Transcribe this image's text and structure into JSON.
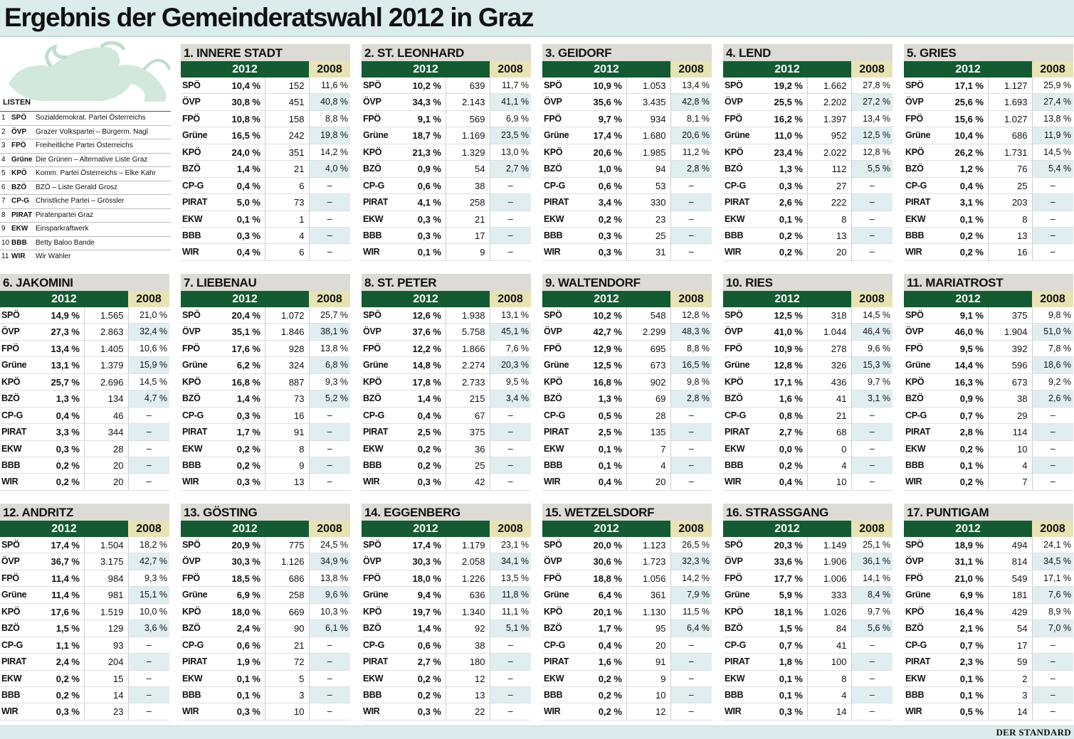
{
  "header": {
    "title": "Ergebnis der Gemeinderatswahl 2012 in Graz"
  },
  "footer": {
    "brand": "DER STANDARD"
  },
  "legend": {
    "heading": "LISTEN",
    "items": [
      {
        "num": "1",
        "abbr": "SPÖ",
        "name": "Sozialdemokrat. Partei Österreichs"
      },
      {
        "num": "2",
        "abbr": "ÖVP",
        "name": "Grazer Volkspartei – Bürgerm. Nagl"
      },
      {
        "num": "3",
        "abbr": "FPÖ",
        "name": "Freiheitliche Partei Österreichs"
      },
      {
        "num": "4",
        "abbr": "Grüne",
        "name": "Die Grünen – Alternative Liste Graz"
      },
      {
        "num": "5",
        "abbr": "KPÖ",
        "name": "Komm. Partei Österreichs – Elke Kahr"
      },
      {
        "num": "6",
        "abbr": "BZÖ",
        "name": "BZÖ – Liste Gerald Grosz"
      },
      {
        "num": "7",
        "abbr": "CP-G",
        "name": "Christliche Partei – Grössler"
      },
      {
        "num": "8",
        "abbr": "PIRAT",
        "name": "Piratenpartei Graz"
      },
      {
        "num": "9",
        "abbr": "EKW",
        "name": "Einsparkraftwerk"
      },
      {
        "num": "10",
        "abbr": "BBB",
        "name": "Betty Baloo Bande"
      },
      {
        "num": "11",
        "abbr": "WIR",
        "name": "Wir Wähler"
      }
    ]
  },
  "labels": {
    "year_current": "2012",
    "year_previous": "2008"
  },
  "parties": [
    "SPÖ",
    "ÖVP",
    "FPÖ",
    "Grüne",
    "KPÖ",
    "BZÖ",
    "CP-G",
    "PIRAT",
    "EKW",
    "BBB",
    "WIR"
  ],
  "districts": [
    {
      "name": "1. INNERE STADT",
      "rows": [
        [
          "10,4 %",
          "152",
          "11,6 %"
        ],
        [
          "30,8 %",
          "451",
          "40,8 %"
        ],
        [
          "10,8 %",
          "158",
          "8,8 %"
        ],
        [
          "16,5 %",
          "242",
          "19,8 %"
        ],
        [
          "24,0 %",
          "351",
          "14,2 %"
        ],
        [
          "1,4 %",
          "21",
          "4,0 %"
        ],
        [
          "0,4 %",
          "6",
          "–"
        ],
        [
          "5,0 %",
          "73",
          "–"
        ],
        [
          "0,1 %",
          "1",
          "–"
        ],
        [
          "0,3 %",
          "4",
          "–"
        ],
        [
          "0,4 %",
          "6",
          "–"
        ]
      ]
    },
    {
      "name": "2. ST. LEONHARD",
      "rows": [
        [
          "10,2 %",
          "639",
          "11,7 %"
        ],
        [
          "34,3 %",
          "2.143",
          "41,1 %"
        ],
        [
          "9,1 %",
          "569",
          "6,9 %"
        ],
        [
          "18,7 %",
          "1.169",
          "23,5 %"
        ],
        [
          "21,3 %",
          "1.329",
          "13,0 %"
        ],
        [
          "0,9 %",
          "54",
          "2,7 %"
        ],
        [
          "0,6 %",
          "38",
          "–"
        ],
        [
          "4,1 %",
          "258",
          "–"
        ],
        [
          "0,3 %",
          "21",
          "–"
        ],
        [
          "0,3 %",
          "17",
          "–"
        ],
        [
          "0,1 %",
          "9",
          "–"
        ]
      ]
    },
    {
      "name": "3. GEIDORF",
      "rows": [
        [
          "10,9 %",
          "1.053",
          "13,4 %"
        ],
        [
          "35,6 %",
          "3.435",
          "42,8 %"
        ],
        [
          "9,7 %",
          "934",
          "8,1 %"
        ],
        [
          "17,4 %",
          "1.680",
          "20,6 %"
        ],
        [
          "20,6 %",
          "1.985",
          "11,2 %"
        ],
        [
          "1,0 %",
          "94",
          "2,8 %"
        ],
        [
          "0,6 %",
          "53",
          "–"
        ],
        [
          "3,4 %",
          "330",
          "–"
        ],
        [
          "0,2 %",
          "23",
          "–"
        ],
        [
          "0,3 %",
          "25",
          "–"
        ],
        [
          "0,3 %",
          "31",
          "–"
        ]
      ]
    },
    {
      "name": "4. LEND",
      "rows": [
        [
          "19,2 %",
          "1.662",
          "27,8 %"
        ],
        [
          "25,5 %",
          "2.202",
          "27,2 %"
        ],
        [
          "16,2 %",
          "1.397",
          "13,4 %"
        ],
        [
          "11,0 %",
          "952",
          "12,5 %"
        ],
        [
          "23,4 %",
          "2.022",
          "12,8 %"
        ],
        [
          "1,3 %",
          "112",
          "5,5 %"
        ],
        [
          "0,3 %",
          "27",
          "–"
        ],
        [
          "2,6 %",
          "222",
          "–"
        ],
        [
          "0,1 %",
          "8",
          "–"
        ],
        [
          "0,2 %",
          "13",
          "–"
        ],
        [
          "0,2 %",
          "20",
          "–"
        ]
      ]
    },
    {
      "name": "5. GRIES",
      "rows": [
        [
          "17,1 %",
          "1.127",
          "25,9 %"
        ],
        [
          "25,6 %",
          "1.693",
          "27,4 %"
        ],
        [
          "15,6 %",
          "1.027",
          "13,8 %"
        ],
        [
          "10,4 %",
          "686",
          "11,9 %"
        ],
        [
          "26,2 %",
          "1.731",
          "14,5 %"
        ],
        [
          "1,2 %",
          "76",
          "5,4 %"
        ],
        [
          "0,4 %",
          "25",
          "–"
        ],
        [
          "3,1 %",
          "203",
          "–"
        ],
        [
          "0,1 %",
          "8",
          "–"
        ],
        [
          "0,2 %",
          "13",
          "–"
        ],
        [
          "0,2 %",
          "16",
          "–"
        ]
      ]
    },
    {
      "name": "6. JAKOMINI",
      "rows": [
        [
          "14,9 %",
          "1.565",
          "21,0 %"
        ],
        [
          "27,3 %",
          "2.863",
          "32,4 %"
        ],
        [
          "13,4 %",
          "1.405",
          "10,6 %"
        ],
        [
          "13,1 %",
          "1.379",
          "15,9 %"
        ],
        [
          "25,7 %",
          "2.696",
          "14,5 %"
        ],
        [
          "1,3 %",
          "134",
          "4,7 %"
        ],
        [
          "0,4 %",
          "46",
          "–"
        ],
        [
          "3,3 %",
          "344",
          "–"
        ],
        [
          "0,3 %",
          "28",
          "–"
        ],
        [
          "0,2 %",
          "20",
          "–"
        ],
        [
          "0,2 %",
          "20",
          "–"
        ]
      ]
    },
    {
      "name": "7. LIEBENAU",
      "rows": [
        [
          "20,4 %",
          "1.072",
          "25,7 %"
        ],
        [
          "35,1 %",
          "1.846",
          "38,1 %"
        ],
        [
          "17,6 %",
          "928",
          "13,8 %"
        ],
        [
          "6,2 %",
          "324",
          "6,8 %"
        ],
        [
          "16,8 %",
          "887",
          "9,3 %"
        ],
        [
          "1,4 %",
          "73",
          "5,2 %"
        ],
        [
          "0,3 %",
          "16",
          "–"
        ],
        [
          "1,7 %",
          "91",
          "–"
        ],
        [
          "0,2 %",
          "8",
          "–"
        ],
        [
          "0,2 %",
          "9",
          "–"
        ],
        [
          "0,3 %",
          "13",
          "–"
        ]
      ]
    },
    {
      "name": "8. ST. PETER",
      "rows": [
        [
          "12,6 %",
          "1.938",
          "13,1 %"
        ],
        [
          "37,6 %",
          "5.758",
          "45,1 %"
        ],
        [
          "12,2 %",
          "1.866",
          "7,6 %"
        ],
        [
          "14,8 %",
          "2.274",
          "20,3 %"
        ],
        [
          "17,8 %",
          "2.733",
          "9,5 %"
        ],
        [
          "1,4 %",
          "215",
          "3,4 %"
        ],
        [
          "0,4 %",
          "67",
          "–"
        ],
        [
          "2,5 %",
          "375",
          "–"
        ],
        [
          "0,2 %",
          "36",
          "–"
        ],
        [
          "0,2 %",
          "25",
          "–"
        ],
        [
          "0,3 %",
          "42",
          "–"
        ]
      ]
    },
    {
      "name": "9. WALTENDORF",
      "rows": [
        [
          "10,2 %",
          "548",
          "12,8 %"
        ],
        [
          "42,7 %",
          "2.299",
          "48,3 %"
        ],
        [
          "12,9 %",
          "695",
          "8,8 %"
        ],
        [
          "12,5 %",
          "673",
          "16,5 %"
        ],
        [
          "16,8 %",
          "902",
          "9,8 %"
        ],
        [
          "1,3 %",
          "69",
          "2,8 %"
        ],
        [
          "0,5 %",
          "28",
          "–"
        ],
        [
          "2,5 %",
          "135",
          "–"
        ],
        [
          "0,1 %",
          "7",
          "–"
        ],
        [
          "0,1 %",
          "4",
          "–"
        ],
        [
          "0,4 %",
          "20",
          "–"
        ]
      ]
    },
    {
      "name": "10. RIES",
      "rows": [
        [
          "12,5 %",
          "318",
          "14,5 %"
        ],
        [
          "41,0 %",
          "1.044",
          "46,4 %"
        ],
        [
          "10,9 %",
          "278",
          "9,6 %"
        ],
        [
          "12,8 %",
          "326",
          "15,3 %"
        ],
        [
          "17,1 %",
          "436",
          "9,7 %"
        ],
        [
          "1,6 %",
          "41",
          "3,1 %"
        ],
        [
          "0,8 %",
          "21",
          "–"
        ],
        [
          "2,7 %",
          "68",
          "–"
        ],
        [
          "0,0 %",
          "0",
          "–"
        ],
        [
          "0,2 %",
          "4",
          "–"
        ],
        [
          "0,4 %",
          "10",
          "–"
        ]
      ]
    },
    {
      "name": "11. MARIATROST",
      "rows": [
        [
          "9,1 %",
          "375",
          "9,8 %"
        ],
        [
          "46,0 %",
          "1.904",
          "51,0 %"
        ],
        [
          "9,5 %",
          "392",
          "7,8 %"
        ],
        [
          "14,4 %",
          "596",
          "18,6 %"
        ],
        [
          "16,3 %",
          "673",
          "9,2 %"
        ],
        [
          "0,9 %",
          "38",
          "2,6 %"
        ],
        [
          "0,7 %",
          "29",
          "–"
        ],
        [
          "2,8 %",
          "114",
          "–"
        ],
        [
          "0,2 %",
          "10",
          "–"
        ],
        [
          "0,1 %",
          "4",
          "–"
        ],
        [
          "0,2 %",
          "7",
          "–"
        ]
      ]
    },
    {
      "name": "12. ANDRITZ",
      "rows": [
        [
          "17,4 %",
          "1.504",
          "18,2 %"
        ],
        [
          "36,7 %",
          "3.175",
          "42,7 %"
        ],
        [
          "11,4 %",
          "984",
          "9,3 %"
        ],
        [
          "11,4 %",
          "981",
          "15,1 %"
        ],
        [
          "17,6 %",
          "1.519",
          "10,0 %"
        ],
        [
          "1,5 %",
          "129",
          "3,6 %"
        ],
        [
          "1,1 %",
          "93",
          "–"
        ],
        [
          "2,4 %",
          "204",
          "–"
        ],
        [
          "0,2 %",
          "15",
          "–"
        ],
        [
          "0,2 %",
          "14",
          "–"
        ],
        [
          "0,3 %",
          "23",
          "–"
        ]
      ]
    },
    {
      "name": "13. GÖSTING",
      "rows": [
        [
          "20,9 %",
          "775",
          "24,5 %"
        ],
        [
          "30,3 %",
          "1.126",
          "34,9 %"
        ],
        [
          "18,5 %",
          "686",
          "13,8 %"
        ],
        [
          "6,9 %",
          "258",
          "9,6 %"
        ],
        [
          "18,0 %",
          "669",
          "10,3 %"
        ],
        [
          "2,4 %",
          "90",
          "6,1 %"
        ],
        [
          "0,6 %",
          "21",
          "–"
        ],
        [
          "1,9 %",
          "72",
          "–"
        ],
        [
          "0,1 %",
          "5",
          "–"
        ],
        [
          "0,1 %",
          "3",
          "–"
        ],
        [
          "0,3 %",
          "10",
          "–"
        ]
      ]
    },
    {
      "name": "14. EGGENBERG",
      "rows": [
        [
          "17,4 %",
          "1.179",
          "23,1 %"
        ],
        [
          "30,3 %",
          "2.058",
          "34,1 %"
        ],
        [
          "18,0 %",
          "1.226",
          "13,5 %"
        ],
        [
          "9,4 %",
          "636",
          "11,8 %"
        ],
        [
          "19,7 %",
          "1.340",
          "11,1 %"
        ],
        [
          "1,4 %",
          "92",
          "5,1 %"
        ],
        [
          "0,6 %",
          "38",
          "–"
        ],
        [
          "2,7 %",
          "180",
          "–"
        ],
        [
          "0,2 %",
          "12",
          "–"
        ],
        [
          "0,2 %",
          "13",
          "–"
        ],
        [
          "0,3 %",
          "22",
          "–"
        ]
      ]
    },
    {
      "name": "15. WETZELSDORF",
      "rows": [
        [
          "20,0 %",
          "1.123",
          "26,5 %"
        ],
        [
          "30,6 %",
          "1.723",
          "32,3 %"
        ],
        [
          "18,8 %",
          "1.056",
          "14,2 %"
        ],
        [
          "6,4 %",
          "361",
          "7,9 %"
        ],
        [
          "20,1 %",
          "1.130",
          "11,5 %"
        ],
        [
          "1,7 %",
          "95",
          "6,4 %"
        ],
        [
          "0,4 %",
          "20",
          "–"
        ],
        [
          "1,6 %",
          "91",
          "–"
        ],
        [
          "0,2 %",
          "9",
          "–"
        ],
        [
          "0,2 %",
          "10",
          "–"
        ],
        [
          "0,2 %",
          "12",
          "–"
        ]
      ]
    },
    {
      "name": "16. STRASSGANG",
      "rows": [
        [
          "20,3 %",
          "1.149",
          "25,1 %"
        ],
        [
          "33,6 %",
          "1.906",
          "36,1 %"
        ],
        [
          "17,7 %",
          "1.006",
          "14,1 %"
        ],
        [
          "5,9 %",
          "333",
          "8,4 %"
        ],
        [
          "18,1 %",
          "1.026",
          "9,7 %"
        ],
        [
          "1,5 %",
          "84",
          "5,6 %"
        ],
        [
          "0,7 %",
          "41",
          "–"
        ],
        [
          "1,8 %",
          "100",
          "–"
        ],
        [
          "0,1 %",
          "8",
          "–"
        ],
        [
          "0,1 %",
          "4",
          "–"
        ],
        [
          "0,3 %",
          "14",
          "–"
        ]
      ]
    },
    {
      "name": "17. PUNTIGAM",
      "rows": [
        [
          "18,9 %",
          "494",
          "24,1 %"
        ],
        [
          "31,1 %",
          "814",
          "34,5 %"
        ],
        [
          "21,0 %",
          "549",
          "17,1 %"
        ],
        [
          "6,9 %",
          "181",
          "7,6 %"
        ],
        [
          "16,4 %",
          "429",
          "8,9 %"
        ],
        [
          "2,1 %",
          "54",
          "7,0 %"
        ],
        [
          "0,7 %",
          "17",
          "–"
        ],
        [
          "2,3 %",
          "59",
          "–"
        ],
        [
          "0,1 %",
          "2",
          "–"
        ],
        [
          "0,1 %",
          "3",
          "–"
        ],
        [
          "0,5 %",
          "14",
          "–"
        ]
      ]
    }
  ],
  "colors": {
    "green_header": "#145a32",
    "olive_header": "#e8e3b5",
    "title_band": "#dcecec",
    "district_title": "#dddbd5",
    "highlight": "#e1eef1"
  }
}
